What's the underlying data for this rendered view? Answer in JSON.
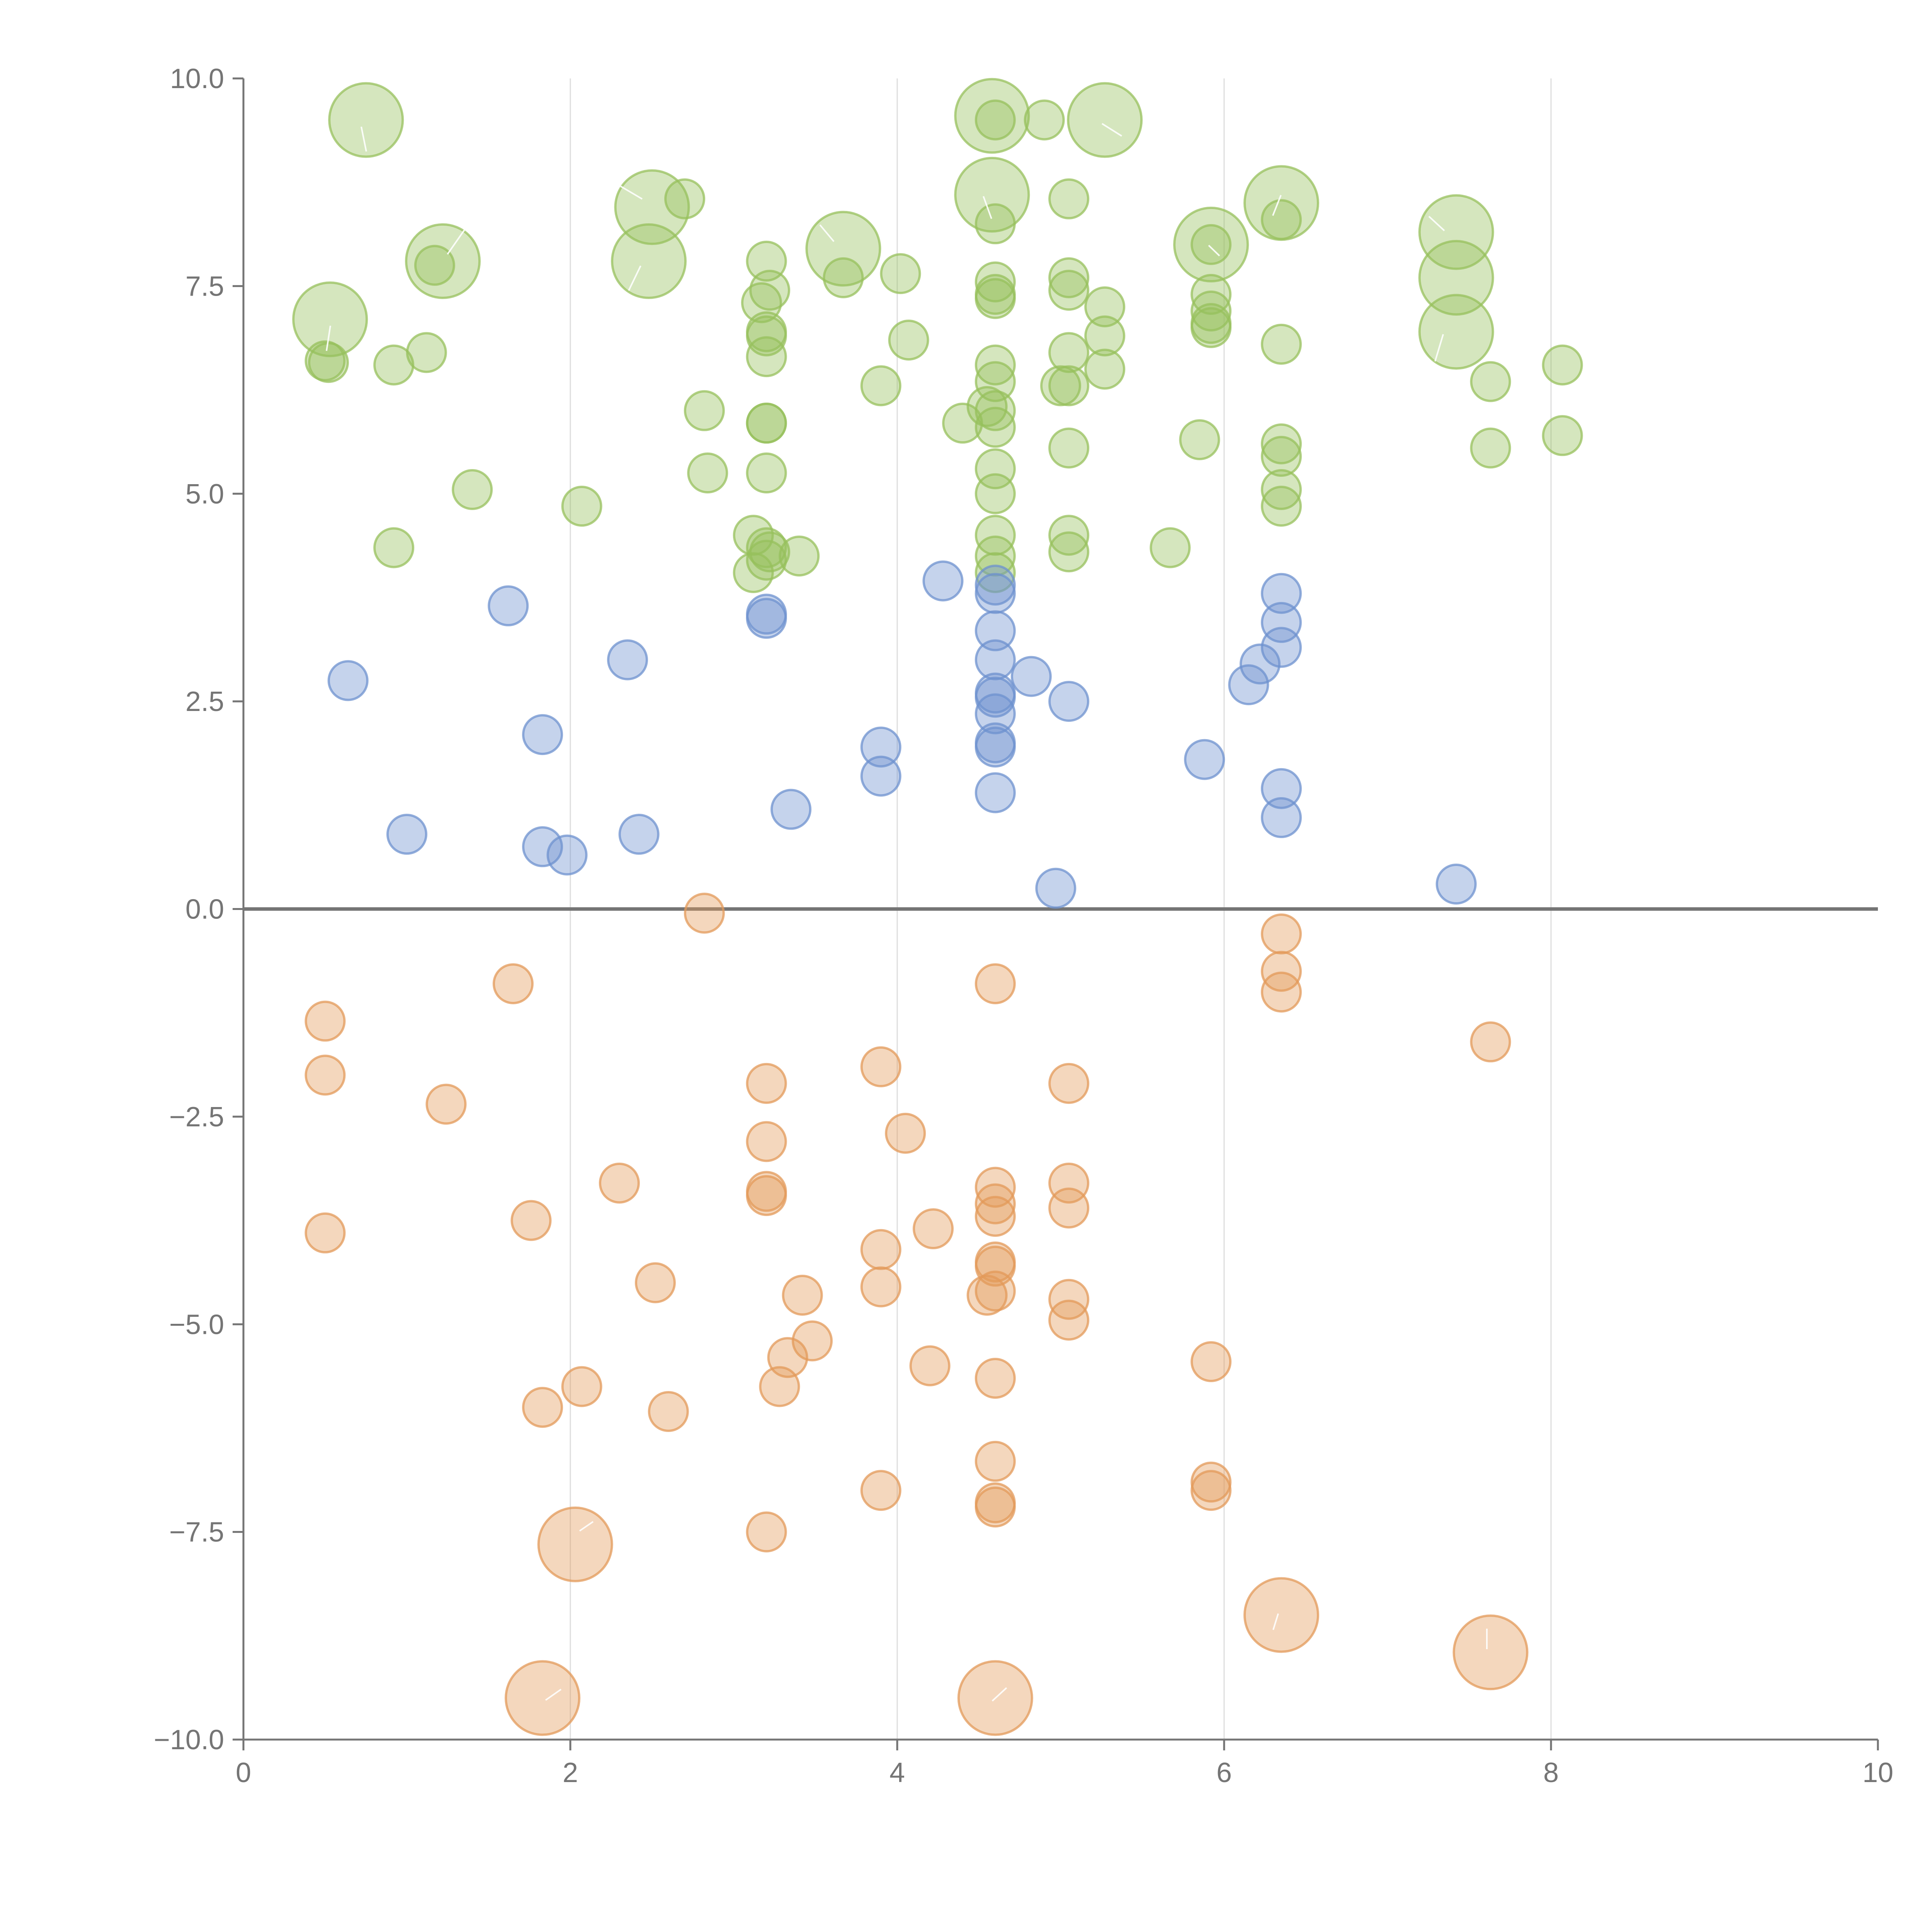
{
  "chart_data": {
    "type": "scatter",
    "title": "",
    "xlabel": "",
    "ylabel": "",
    "xlim": [
      0,
      10
    ],
    "ylim": [
      -10,
      10
    ],
    "x_ticks": [
      "0",
      "2",
      "4",
      "6",
      "8",
      "10"
    ],
    "y_ticks": [
      "−10.0",
      "−7.5",
      "−5.0",
      "−2.5",
      "0.0",
      "2.5",
      "5.0",
      "7.5",
      "10.0"
    ],
    "x_grid": [
      2,
      4,
      6,
      8
    ],
    "zero_line": true,
    "colors": {
      "green": "#97c05c",
      "blue": "#6e92cf",
      "orange": "#e39a5a"
    },
    "series": [
      {
        "color": "green",
        "points": [
          [
            0.75,
            9.5,
            2
          ],
          [
            4.58,
            9.55,
            2
          ],
          [
            5.27,
            9.5,
            2
          ],
          [
            4.58,
            8.6,
            2
          ],
          [
            2.5,
            8.45,
            2
          ],
          [
            6.35,
            8.5,
            2
          ],
          [
            7.42,
            8.15,
            2
          ],
          [
            5.92,
            8.0,
            2
          ],
          [
            3.67,
            7.95,
            2
          ],
          [
            1.22,
            7.8,
            2
          ],
          [
            2.48,
            7.8,
            2
          ],
          [
            7.42,
            7.6,
            2
          ],
          [
            0.53,
            7.1,
            2
          ],
          [
            7.42,
            6.95,
            2
          ],
          [
            4.6,
            9.5,
            1
          ],
          [
            4.9,
            9.5,
            1
          ],
          [
            2.7,
            8.55,
            1
          ],
          [
            5.05,
            8.55,
            1
          ],
          [
            4.6,
            8.25,
            1
          ],
          [
            6.35,
            8.3,
            1
          ],
          [
            5.92,
            8.0,
            1
          ],
          [
            3.2,
            7.8,
            1
          ],
          [
            1.17,
            7.75,
            1
          ],
          [
            4.02,
            7.65,
            1
          ],
          [
            3.67,
            7.6,
            1
          ],
          [
            4.6,
            7.55,
            1
          ],
          [
            5.05,
            7.6,
            1
          ],
          [
            3.22,
            7.45,
            1
          ],
          [
            5.05,
            7.45,
            1
          ],
          [
            4.6,
            7.35,
            1
          ],
          [
            4.6,
            7.4,
            1
          ],
          [
            5.92,
            7.4,
            1
          ],
          [
            3.17,
            7.3,
            1
          ],
          [
            5.27,
            7.25,
            1
          ],
          [
            5.92,
            7.2,
            1
          ],
          [
            5.92,
            7.05,
            1
          ],
          [
            5.92,
            7.0,
            1
          ],
          [
            3.2,
            6.95,
            1
          ],
          [
            3.2,
            6.9,
            1
          ],
          [
            4.07,
            6.85,
            1
          ],
          [
            5.27,
            6.9,
            1
          ],
          [
            6.35,
            6.8,
            1
          ],
          [
            1.12,
            6.7,
            1
          ],
          [
            5.05,
            6.7,
            1
          ],
          [
            3.2,
            6.65,
            1
          ],
          [
            0.5,
            6.6,
            1
          ],
          [
            0.52,
            6.58,
            1
          ],
          [
            0.92,
            6.55,
            1
          ],
          [
            4.6,
            6.55,
            1
          ],
          [
            8.07,
            6.55,
            1
          ],
          [
            5.27,
            6.5,
            1
          ],
          [
            4.6,
            6.35,
            1
          ],
          [
            7.63,
            6.35,
            1
          ],
          [
            3.9,
            6.3,
            1
          ],
          [
            5.0,
            6.3,
            1
          ],
          [
            5.05,
            6.3,
            1
          ],
          [
            2.82,
            6.0,
            1
          ],
          [
            4.55,
            6.05,
            1
          ],
          [
            4.6,
            6.0,
            1
          ],
          [
            3.2,
            5.85,
            1
          ],
          [
            3.2,
            5.85,
            1
          ],
          [
            4.4,
            5.85,
            1
          ],
          [
            4.6,
            5.8,
            1
          ],
          [
            5.85,
            5.65,
            1
          ],
          [
            8.07,
            5.7,
            1
          ],
          [
            6.35,
            5.6,
            1
          ],
          [
            5.05,
            5.55,
            1
          ],
          [
            7.63,
            5.55,
            1
          ],
          [
            6.35,
            5.45,
            1
          ],
          [
            4.6,
            5.3,
            1
          ],
          [
            2.84,
            5.25,
            1
          ],
          [
            3.2,
            5.25,
            1
          ],
          [
            1.4,
            5.05,
            1
          ],
          [
            4.6,
            5.0,
            1
          ],
          [
            6.35,
            5.05,
            1
          ],
          [
            2.07,
            4.85,
            1
          ],
          [
            6.35,
            4.85,
            1
          ],
          [
            3.12,
            4.5,
            1
          ],
          [
            4.6,
            4.5,
            1
          ],
          [
            5.05,
            4.5,
            1
          ],
          [
            0.92,
            4.35,
            1
          ],
          [
            3.2,
            4.35,
            1
          ],
          [
            3.22,
            4.3,
            1
          ],
          [
            3.4,
            4.25,
            1
          ],
          [
            4.6,
            4.25,
            1
          ],
          [
            5.05,
            4.3,
            1
          ],
          [
            5.67,
            4.35,
            1
          ],
          [
            3.2,
            4.2,
            1
          ],
          [
            3.12,
            4.05,
            1
          ],
          [
            4.6,
            4.05,
            1
          ]
        ]
      },
      {
        "color": "blue",
        "points": [
          [
            1.62,
            3.65,
            1
          ],
          [
            4.28,
            3.95,
            1
          ],
          [
            4.6,
            3.9,
            1
          ],
          [
            4.6,
            3.8,
            1
          ],
          [
            6.35,
            3.8,
            1
          ],
          [
            3.2,
            3.55,
            1
          ],
          [
            3.2,
            3.5,
            1
          ],
          [
            6.35,
            3.45,
            1
          ],
          [
            4.6,
            3.35,
            1
          ],
          [
            6.35,
            3.15,
            1
          ],
          [
            2.35,
            3.0,
            1
          ],
          [
            4.6,
            3.0,
            1
          ],
          [
            6.22,
            2.95,
            1
          ],
          [
            0.64,
            2.75,
            1
          ],
          [
            4.82,
            2.8,
            1
          ],
          [
            6.15,
            2.7,
            1
          ],
          [
            4.6,
            2.6,
            1
          ],
          [
            4.6,
            2.55,
            1
          ],
          [
            5.05,
            2.5,
            1
          ],
          [
            4.6,
            2.35,
            1
          ],
          [
            1.83,
            2.1,
            1
          ],
          [
            3.9,
            1.95,
            1
          ],
          [
            4.6,
            2.0,
            1
          ],
          [
            4.6,
            1.95,
            1
          ],
          [
            5.88,
            1.8,
            1
          ],
          [
            3.9,
            1.6,
            1
          ],
          [
            6.35,
            1.45,
            1
          ],
          [
            4.6,
            1.4,
            1
          ],
          [
            3.35,
            1.2,
            1
          ],
          [
            6.35,
            1.1,
            1
          ],
          [
            1.0,
            0.9,
            1
          ],
          [
            2.42,
            0.9,
            1
          ],
          [
            1.83,
            0.75,
            1
          ],
          [
            1.98,
            0.65,
            1
          ],
          [
            4.97,
            0.25,
            1
          ],
          [
            7.42,
            0.3,
            1
          ]
        ]
      },
      {
        "color": "orange",
        "points": [
          [
            2.82,
            -0.05,
            1
          ],
          [
            6.35,
            -0.3,
            1
          ],
          [
            6.35,
            -0.75,
            1
          ],
          [
            1.65,
            -0.9,
            1
          ],
          [
            4.6,
            -0.9,
            1
          ],
          [
            6.35,
            -1.0,
            1
          ],
          [
            0.5,
            -1.35,
            1
          ],
          [
            7.63,
            -1.6,
            1
          ],
          [
            3.9,
            -1.9,
            1
          ],
          [
            0.5,
            -2.0,
            1
          ],
          [
            3.2,
            -2.1,
            1
          ],
          [
            5.05,
            -2.1,
            1
          ],
          [
            1.24,
            -2.35,
            1
          ],
          [
            4.05,
            -2.7,
            1
          ],
          [
            3.2,
            -2.8,
            1
          ],
          [
            2.3,
            -3.3,
            1
          ],
          [
            4.6,
            -3.35,
            1
          ],
          [
            5.05,
            -3.3,
            1
          ],
          [
            3.2,
            -3.4,
            1
          ],
          [
            3.2,
            -3.45,
            1
          ],
          [
            4.6,
            -3.55,
            1
          ],
          [
            5.05,
            -3.6,
            1
          ],
          [
            4.6,
            -3.7,
            1
          ],
          [
            1.76,
            -3.75,
            1
          ],
          [
            0.5,
            -3.9,
            1
          ],
          [
            4.22,
            -3.85,
            1
          ],
          [
            3.9,
            -4.1,
            1
          ],
          [
            4.6,
            -4.25,
            1
          ],
          [
            4.6,
            -4.3,
            1
          ],
          [
            2.52,
            -4.5,
            1
          ],
          [
            3.9,
            -4.55,
            1
          ],
          [
            4.6,
            -4.6,
            1
          ],
          [
            3.42,
            -4.65,
            1
          ],
          [
            4.55,
            -4.65,
            1
          ],
          [
            5.05,
            -4.7,
            1
          ],
          [
            5.05,
            -4.95,
            1
          ],
          [
            3.48,
            -5.2,
            1
          ],
          [
            3.33,
            -5.4,
            1
          ],
          [
            5.92,
            -5.45,
            1
          ],
          [
            4.2,
            -5.5,
            1
          ],
          [
            4.6,
            -5.65,
            1
          ],
          [
            2.07,
            -5.75,
            1
          ],
          [
            3.28,
            -5.75,
            1
          ],
          [
            1.83,
            -6.0,
            1
          ],
          [
            2.6,
            -6.05,
            1
          ],
          [
            4.6,
            -6.65,
            1
          ],
          [
            5.92,
            -6.9,
            1
          ],
          [
            3.9,
            -7.0,
            1
          ],
          [
            5.92,
            -7.0,
            1
          ],
          [
            4.6,
            -7.15,
            1
          ],
          [
            4.6,
            -7.2,
            1
          ],
          [
            3.2,
            -7.5,
            1
          ],
          [
            2.03,
            -7.65,
            2
          ],
          [
            6.35,
            -8.5,
            2
          ],
          [
            7.63,
            -8.95,
            2
          ],
          [
            1.83,
            -9.5,
            2
          ],
          [
            4.6,
            -9.5,
            2
          ]
        ]
      }
    ]
  }
}
